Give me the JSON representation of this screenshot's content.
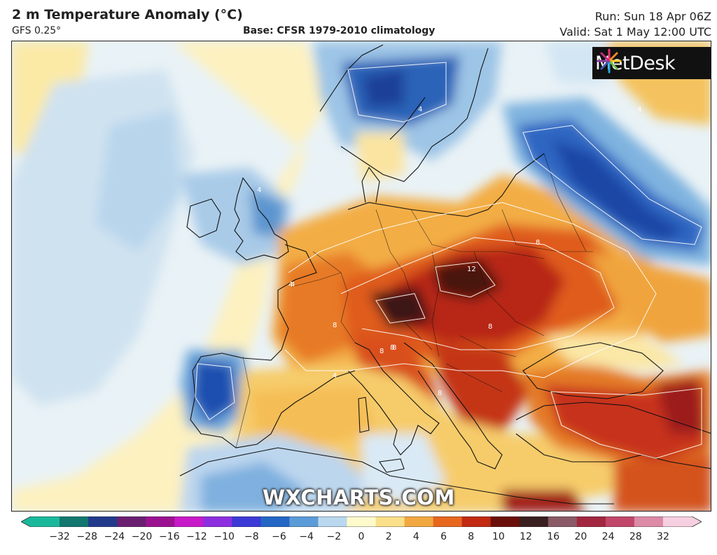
{
  "header": {
    "title": "2 m Temperature Anomaly (°C)",
    "model": "GFS 0.25°",
    "base": "Base: CFSR 1979-2010 climatology",
    "run": "Run: Sun 18 Apr 06Z",
    "valid": "Valid: Sat 1 May 12:00 UTC"
  },
  "logo": {
    "text": "MetDesk",
    "icon": "metdesk-starburst-icon"
  },
  "watermark": "WXCHARTS.COM",
  "colorbar": {
    "ticks": [
      "−32",
      "−28",
      "−24",
      "−20",
      "−16",
      "−12",
      "−10",
      "−8",
      "−6",
      "−4",
      "−2",
      "0",
      "2",
      "4",
      "6",
      "8",
      "10",
      "12",
      "16",
      "20",
      "24",
      "28",
      "32"
    ],
    "colors": [
      "#1ab89a",
      "#11776f",
      "#213a8c",
      "#6a1f70",
      "#9b1290",
      "#c81ac8",
      "#8d2fe0",
      "#3c39d6",
      "#2366c4",
      "#5b9bd7",
      "#b9d8ef",
      "#fffacc",
      "#fae08a",
      "#f2a841",
      "#e7671f",
      "#c22a12",
      "#6b0f0a",
      "#3a1f1f",
      "#8a5a66",
      "#a2263f",
      "#c1476a",
      "#dc8aa6",
      "#f6cfe0"
    ]
  },
  "map": {
    "region": "Europe",
    "contour_labels": [
      "4",
      "4",
      "4",
      "8",
      "8",
      "8",
      "8",
      "8",
      "8",
      "8",
      "12",
      "4",
      "4",
      "4"
    ]
  }
}
